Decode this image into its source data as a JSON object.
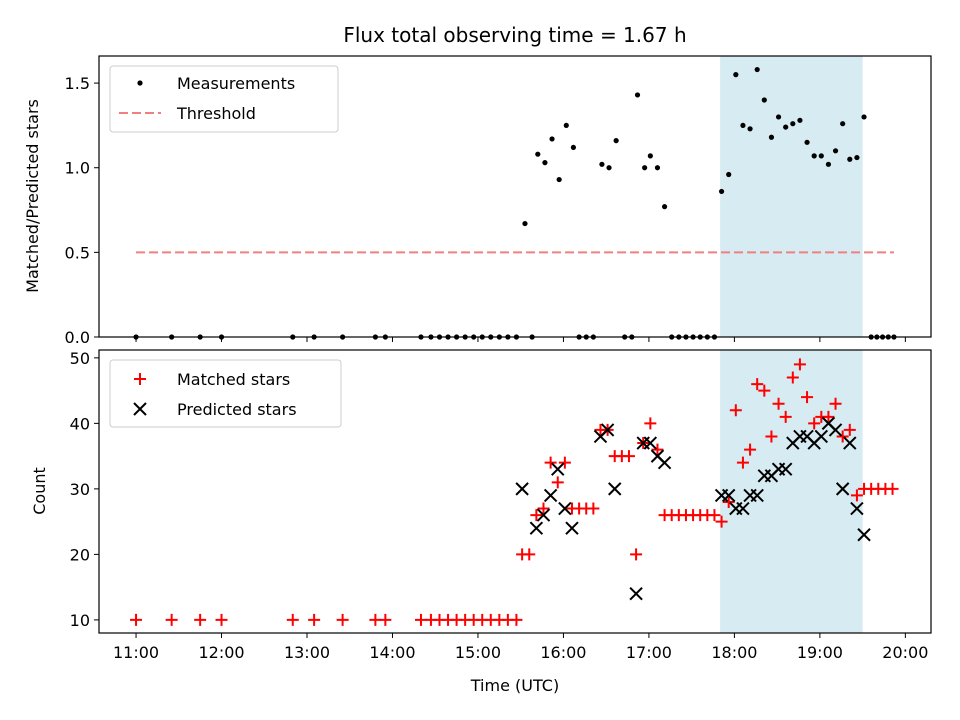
{
  "chart_data": [
    {
      "panel": "top",
      "type": "scatter",
      "title": "Flux total observing time = 1.67 h",
      "ylabel": "Matched/Predicted stars",
      "xlim": [
        "10:34",
        "20:18"
      ],
      "ylim": [
        0,
        1.66
      ],
      "yticks": [
        "0.0",
        "0.5",
        "1.0",
        "1.5"
      ],
      "shaded_span": [
        "17:50",
        "19:30"
      ],
      "shade_color": "#add8e6",
      "legend_position": "upper-left",
      "series": [
        {
          "name": "Measurements",
          "marker": "dot",
          "color": "#000000",
          "points": [
            [
              "11:00",
              0
            ],
            [
              "11:25",
              0
            ],
            [
              "11:45",
              0
            ],
            [
              "12:00",
              0
            ],
            [
              "12:50",
              0
            ],
            [
              "13:05",
              0
            ],
            [
              "13:25",
              0
            ],
            [
              "13:48",
              0
            ],
            [
              "13:55",
              0
            ],
            [
              "14:20",
              0
            ],
            [
              "14:27",
              0
            ],
            [
              "14:33",
              0
            ],
            [
              "14:39",
              0
            ],
            [
              "14:45",
              0
            ],
            [
              "14:51",
              0
            ],
            [
              "14:57",
              0
            ],
            [
              "15:03",
              0
            ],
            [
              "15:09",
              0
            ],
            [
              "15:15",
              0
            ],
            [
              "15:21",
              0
            ],
            [
              "15:27",
              0
            ],
            [
              "15:33",
              0.67
            ],
            [
              "15:38",
              0
            ],
            [
              "15:42",
              1.08
            ],
            [
              "15:47",
              1.03
            ],
            [
              "15:52",
              1.17
            ],
            [
              "15:57",
              0.93
            ],
            [
              "16:02",
              1.25
            ],
            [
              "16:07",
              1.12
            ],
            [
              "16:11",
              0
            ],
            [
              "16:16",
              0
            ],
            [
              "16:21",
              0
            ],
            [
              "16:27",
              1.02
            ],
            [
              "16:32",
              1.0
            ],
            [
              "16:37",
              1.16
            ],
            [
              "16:43",
              0
            ],
            [
              "16:48",
              0
            ],
            [
              "16:52",
              1.43
            ],
            [
              "16:57",
              1.0
            ],
            [
              "17:01",
              1.07
            ],
            [
              "17:06",
              1.0
            ],
            [
              "17:11",
              0.77
            ],
            [
              "17:16",
              0
            ],
            [
              "17:21",
              0
            ],
            [
              "17:26",
              0
            ],
            [
              "17:31",
              0
            ],
            [
              "17:36",
              0
            ],
            [
              "17:41",
              0
            ],
            [
              "17:46",
              0
            ],
            [
              "17:51",
              0.86
            ],
            [
              "17:56",
              0.96
            ],
            [
              "18:01",
              1.55
            ],
            [
              "18:06",
              1.25
            ],
            [
              "18:11",
              1.23
            ],
            [
              "18:16",
              1.58
            ],
            [
              "18:21",
              1.4
            ],
            [
              "18:26",
              1.18
            ],
            [
              "18:31",
              1.3
            ],
            [
              "18:36",
              1.24
            ],
            [
              "18:41",
              1.26
            ],
            [
              "18:46",
              1.28
            ],
            [
              "18:51",
              1.15
            ],
            [
              "18:56",
              1.07
            ],
            [
              "19:01",
              1.07
            ],
            [
              "19:06",
              1.02
            ],
            [
              "19:11",
              1.1
            ],
            [
              "19:16",
              1.26
            ],
            [
              "19:21",
              1.05
            ],
            [
              "19:26",
              1.06
            ],
            [
              "19:31",
              1.3
            ],
            [
              "19:36",
              0
            ],
            [
              "19:40",
              0
            ],
            [
              "19:44",
              0
            ],
            [
              "19:48",
              0
            ],
            [
              "19:52",
              0
            ]
          ]
        },
        {
          "name": "Threshold",
          "marker": "dashed-line",
          "color": "#f08080",
          "points": [
            [
              "11:00",
              0.5
            ],
            [
              "19:52",
              0.5
            ]
          ]
        }
      ]
    },
    {
      "panel": "bottom",
      "type": "scatter",
      "xlabel": "Time (UTC)",
      "ylabel": "Count",
      "xlim": [
        "10:34",
        "20:18"
      ],
      "ylim": [
        8,
        51.2
      ],
      "xticks": [
        "11:00",
        "12:00",
        "13:00",
        "14:00",
        "15:00",
        "16:00",
        "17:00",
        "18:00",
        "19:00",
        "20:00"
      ],
      "yticks": [
        "10",
        "20",
        "30",
        "40",
        "50"
      ],
      "shaded_span": [
        "17:50",
        "19:30"
      ],
      "shade_color": "#add8e6",
      "legend_position": "upper-left",
      "series": [
        {
          "name": "Matched stars",
          "marker": "plus",
          "color": "#ff0000",
          "points": [
            [
              "11:00",
              10
            ],
            [
              "11:25",
              10
            ],
            [
              "11:45",
              10
            ],
            [
              "12:00",
              10
            ],
            [
              "12:50",
              10
            ],
            [
              "13:05",
              10
            ],
            [
              "13:25",
              10
            ],
            [
              "13:48",
              10
            ],
            [
              "13:55",
              10
            ],
            [
              "14:20",
              10
            ],
            [
              "14:27",
              10
            ],
            [
              "14:33",
              10
            ],
            [
              "14:39",
              10
            ],
            [
              "14:45",
              10
            ],
            [
              "14:51",
              10
            ],
            [
              "14:57",
              10
            ],
            [
              "15:03",
              10
            ],
            [
              "15:09",
              10
            ],
            [
              "15:15",
              10
            ],
            [
              "15:21",
              10
            ],
            [
              "15:27",
              10
            ],
            [
              "15:31",
              20
            ],
            [
              "15:36",
              20
            ],
            [
              "15:41",
              26
            ],
            [
              "15:46",
              27
            ],
            [
              "15:51",
              34
            ],
            [
              "15:56",
              31
            ],
            [
              "16:01",
              34
            ],
            [
              "16:06",
              27
            ],
            [
              "16:11",
              27
            ],
            [
              "16:16",
              27
            ],
            [
              "16:21",
              27
            ],
            [
              "16:26",
              39
            ],
            [
              "16:31",
              39
            ],
            [
              "16:36",
              35
            ],
            [
              "16:41",
              35
            ],
            [
              "16:46",
              35
            ],
            [
              "16:51",
              20
            ],
            [
              "16:56",
              37
            ],
            [
              "17:01",
              40
            ],
            [
              "17:06",
              36
            ],
            [
              "17:11",
              26
            ],
            [
              "17:16",
              26
            ],
            [
              "17:21",
              26
            ],
            [
              "17:26",
              26
            ],
            [
              "17:31",
              26
            ],
            [
              "17:36",
              26
            ],
            [
              "17:41",
              26
            ],
            [
              "17:46",
              26
            ],
            [
              "17:51",
              25
            ],
            [
              "17:56",
              28
            ],
            [
              "18:01",
              42
            ],
            [
              "18:06",
              34
            ],
            [
              "18:11",
              36
            ],
            [
              "18:16",
              46
            ],
            [
              "18:21",
              45
            ],
            [
              "18:26",
              38
            ],
            [
              "18:31",
              43
            ],
            [
              "18:36",
              41
            ],
            [
              "18:41",
              47
            ],
            [
              "18:46",
              49
            ],
            [
              "18:51",
              44
            ],
            [
              "18:56",
              40
            ],
            [
              "19:01",
              41
            ],
            [
              "19:06",
              41
            ],
            [
              "19:11",
              43
            ],
            [
              "19:16",
              38
            ],
            [
              "19:21",
              39
            ],
            [
              "19:26",
              29
            ],
            [
              "19:31",
              30
            ],
            [
              "19:36",
              30
            ],
            [
              "19:41",
              30
            ],
            [
              "19:46",
              30
            ],
            [
              "19:51",
              30
            ]
          ]
        },
        {
          "name": "Predicted stars",
          "marker": "x",
          "color": "#000000",
          "points": [
            [
              "15:31",
              30
            ],
            [
              "15:41",
              24
            ],
            [
              "15:46",
              26
            ],
            [
              "15:51",
              29
            ],
            [
              "15:56",
              33
            ],
            [
              "16:01",
              27
            ],
            [
              "16:06",
              24
            ],
            [
              "16:26",
              38
            ],
            [
              "16:31",
              39
            ],
            [
              "16:36",
              30
            ],
            [
              "16:51",
              14
            ],
            [
              "16:56",
              37
            ],
            [
              "17:01",
              37
            ],
            [
              "17:06",
              35
            ],
            [
              "17:11",
              34
            ],
            [
              "17:51",
              29
            ],
            [
              "17:56",
              29
            ],
            [
              "18:01",
              27
            ],
            [
              "18:06",
              27
            ],
            [
              "18:11",
              29
            ],
            [
              "18:16",
              29
            ],
            [
              "18:21",
              32
            ],
            [
              "18:26",
              32
            ],
            [
              "18:31",
              33
            ],
            [
              "18:36",
              33
            ],
            [
              "18:41",
              37
            ],
            [
              "18:46",
              38
            ],
            [
              "18:51",
              38
            ],
            [
              "18:56",
              37
            ],
            [
              "19:01",
              38
            ],
            [
              "19:06",
              40
            ],
            [
              "19:11",
              39
            ],
            [
              "19:16",
              30
            ],
            [
              "19:21",
              37
            ],
            [
              "19:26",
              27
            ],
            [
              "19:31",
              23
            ]
          ]
        }
      ]
    }
  ]
}
